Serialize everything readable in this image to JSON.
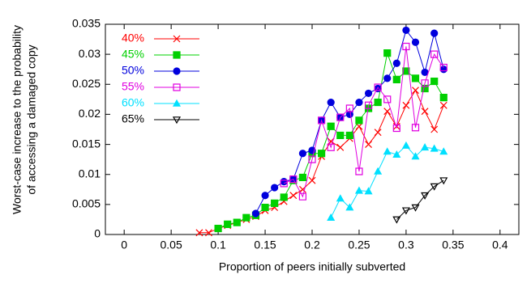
{
  "chart_data": {
    "type": "line",
    "ylabel": [
      "Worst-case increase to the probability",
      "of accessing a damaged copy"
    ],
    "xlabel": "Proportion of peers initially subverted",
    "xlim": [
      -0.02,
      0.42
    ],
    "xticks": [
      0,
      0.05,
      0.1,
      0.15,
      0.2,
      0.25,
      0.3,
      0.35,
      0.4
    ],
    "ylim": [
      0,
      0.035
    ],
    "yticks": [
      0,
      0.005,
      0.01,
      0.015,
      0.02,
      0.025,
      0.03,
      0.035
    ],
    "legend": "top-left",
    "series": [
      {
        "name": "40%",
        "color": "#ff0000",
        "marker": "cross",
        "x": [
          0.08,
          0.09,
          0.1,
          0.11,
          0.12,
          0.13,
          0.14,
          0.15,
          0.16,
          0.17,
          0.18,
          0.19,
          0.2,
          0.21,
          0.22,
          0.23,
          0.24,
          0.25,
          0.26,
          0.27,
          0.28,
          0.29,
          0.3,
          0.31,
          0.32,
          0.33,
          0.34
        ],
        "values": [
          0.0003,
          0.0003,
          0.001,
          0.0015,
          0.002,
          0.0025,
          0.003,
          0.004,
          0.0045,
          0.0055,
          0.0065,
          0.0075,
          0.009,
          0.013,
          0.0155,
          0.0145,
          0.016,
          0.018,
          0.015,
          0.017,
          0.0205,
          0.018,
          0.0215,
          0.024,
          0.0205,
          0.0175,
          0.0215
        ]
      },
      {
        "name": "45%",
        "color": "#00d000",
        "marker": "square",
        "x": [
          0.1,
          0.11,
          0.12,
          0.13,
          0.14,
          0.15,
          0.16,
          0.17,
          0.18,
          0.19,
          0.2,
          0.21,
          0.22,
          0.23,
          0.24,
          0.25,
          0.26,
          0.27,
          0.28,
          0.29,
          0.3,
          0.31,
          0.32,
          0.33,
          0.34
        ],
        "values": [
          0.001,
          0.0017,
          0.002,
          0.0028,
          0.0032,
          0.0045,
          0.0052,
          0.0062,
          0.009,
          0.0095,
          0.0135,
          0.0135,
          0.018,
          0.0165,
          0.0165,
          0.019,
          0.021,
          0.022,
          0.0302,
          0.0258,
          0.0272,
          0.026,
          0.0243,
          0.0255,
          0.0228
        ]
      },
      {
        "name": "50%",
        "color": "#0000dd",
        "marker": "circle",
        "x": [
          0.14,
          0.15,
          0.16,
          0.17,
          0.18,
          0.19,
          0.2,
          0.21,
          0.22,
          0.23,
          0.24,
          0.25,
          0.26,
          0.27,
          0.28,
          0.29,
          0.3,
          0.31,
          0.32,
          0.33,
          0.34
        ],
        "values": [
          0.0035,
          0.0065,
          0.0078,
          0.0088,
          0.0092,
          0.0135,
          0.014,
          0.019,
          0.022,
          0.0195,
          0.02,
          0.022,
          0.0235,
          0.0243,
          0.026,
          0.0285,
          0.034,
          0.032,
          0.027,
          0.0335,
          0.0275
        ]
      },
      {
        "name": "55%",
        "color": "#e000e0",
        "marker": "open-square",
        "x": [
          0.17,
          0.18,
          0.19,
          0.2,
          0.21,
          0.22,
          0.23,
          0.24,
          0.25,
          0.26,
          0.27,
          0.28,
          0.29,
          0.3,
          0.31,
          0.32,
          0.33,
          0.34
        ],
        "values": [
          0.0085,
          0.0092,
          0.0063,
          0.0125,
          0.019,
          0.0145,
          0.0195,
          0.021,
          0.0105,
          0.0215,
          0.0245,
          0.0225,
          0.0177,
          0.0313,
          0.0178,
          0.0252,
          0.03,
          0.0278
        ]
      },
      {
        "name": "60%",
        "color": "#00e0ff",
        "marker": "triangle",
        "x": [
          0.22,
          0.23,
          0.24,
          0.25,
          0.26,
          0.27,
          0.28,
          0.29,
          0.3,
          0.31,
          0.32,
          0.33,
          0.34
        ],
        "values": [
          0.0028,
          0.006,
          0.0045,
          0.0073,
          0.0072,
          0.0105,
          0.0138,
          0.0133,
          0.0148,
          0.013,
          0.0145,
          0.0143,
          0.0138
        ]
      },
      {
        "name": "65%",
        "color": "#000000",
        "marker": "open-triangle-down",
        "x": [
          0.29,
          0.3,
          0.31,
          0.32,
          0.33,
          0.34
        ],
        "values": [
          0.0025,
          0.004,
          0.0045,
          0.0065,
          0.008,
          0.009
        ]
      }
    ]
  }
}
